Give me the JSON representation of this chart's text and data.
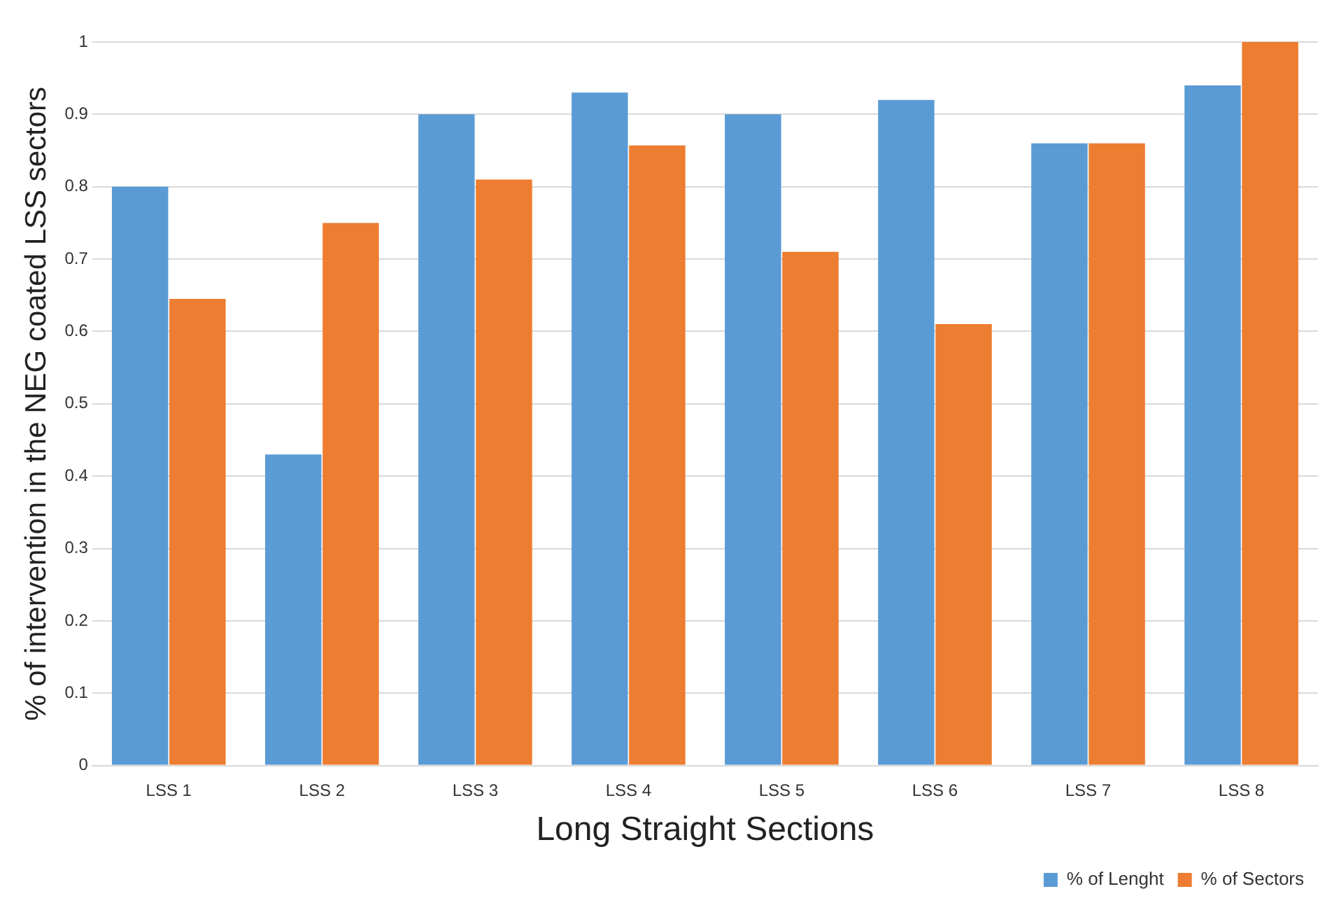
{
  "chart_data": {
    "type": "bar",
    "xlabel": "Long Straight Sections",
    "ylabel": "% of intervention in the NEG coated LSS sectors",
    "categories": [
      "LSS 1",
      "LSS 2",
      "LSS 3",
      "LSS 4",
      "LSS 5",
      "LSS 6",
      "LSS 7",
      "LSS 8"
    ],
    "series": [
      {
        "name": "% of Lenght",
        "color": "#5b9bd5",
        "values": [
          0.8,
          0.43,
          0.9,
          0.93,
          0.9,
          0.92,
          0.86,
          0.94
        ]
      },
      {
        "name": "% of Sectors",
        "color": "#ed7d31",
        "values": [
          0.645,
          0.75,
          0.81,
          0.857,
          0.71,
          0.61,
          0.86,
          1.0
        ]
      }
    ],
    "ylim": [
      0,
      1
    ],
    "yticks": [
      0,
      0.1,
      0.2,
      0.3,
      0.4,
      0.5,
      0.6,
      0.7,
      0.8,
      0.9,
      1
    ],
    "grid": "y",
    "legend": "bottom right"
  }
}
